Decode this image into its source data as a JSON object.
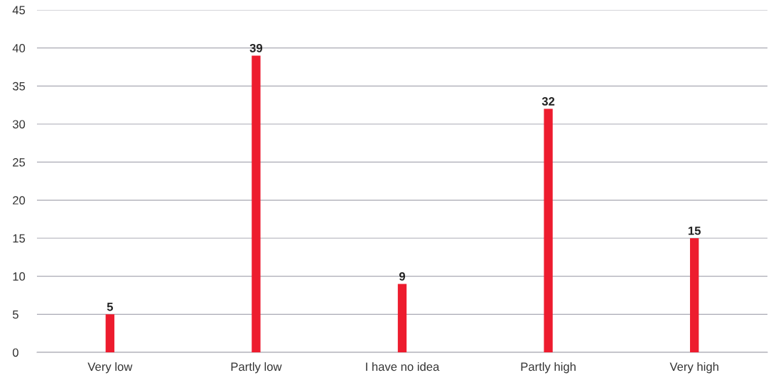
{
  "chart_data": {
    "type": "bar",
    "categories": [
      "Very low",
      "Partly low",
      "I have no idea",
      "Partly high",
      "Very high"
    ],
    "values": [
      5,
      39,
      9,
      32,
      15
    ],
    "color": "#ed1c2e",
    "ylim": [
      0,
      45
    ],
    "yticks": [
      0,
      5,
      10,
      15,
      20,
      25,
      30,
      35,
      40,
      45
    ],
    "grid": "y",
    "data_labels": true
  }
}
